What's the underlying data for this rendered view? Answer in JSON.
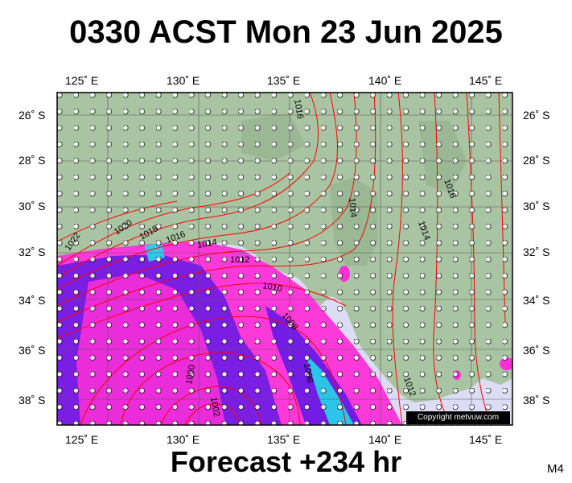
{
  "title": "0330 ACST Mon 23 Jun 2025",
  "footer": "Forecast +234 hr",
  "model_tag": "M4",
  "copyright": "Copyright metvuw.com",
  "map": {
    "lon_labels": [
      "125˚ E",
      "130˚ E",
      "135˚ E",
      "140˚ E",
      "145˚ E"
    ],
    "lat_labels": [
      "26˚ S",
      "28˚ S",
      "30˚ S",
      "32˚ S",
      "34˚ S",
      "36˚ S",
      "38˚ S"
    ],
    "isobar_labels": [
      "1022",
      "1020",
      "1018",
      "1016",
      "1014",
      "1012",
      "1010",
      "1008",
      "1006",
      "1002",
      "1000",
      "1014",
      "1016",
      "1014",
      "1016",
      "1012"
    ],
    "colors": {
      "land": "#a9c4a2",
      "ocean_rain_light": "#dcdcf5",
      "rain_mid": "#ff2fd8",
      "rain_heavy": "#5a18e6",
      "rain_extreme": "#22d8e8",
      "isobar": "#ff0000"
    }
  }
}
